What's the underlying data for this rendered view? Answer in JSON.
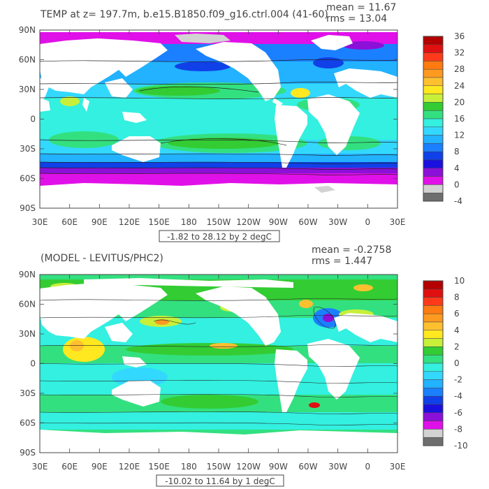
{
  "chart_data": [
    {
      "type": "heatmap",
      "title": "TEMP at z= 197.7m, b.e15.B1850.f09_g16.ctrl.004 (41-60)",
      "stats": {
        "mean": "mean = 11.67",
        "rms": "rms = 13.04"
      },
      "range_note": "-1.82 to 28.12 by 2 degC",
      "xticks": [
        "30E",
        "60E",
        "90E",
        "120E",
        "150E",
        "180",
        "150W",
        "120W",
        "90W",
        "60W",
        "30W",
        "0",
        "30E"
      ],
      "yticks": [
        "90N",
        "60N",
        "30N",
        "0",
        "30S",
        "60S",
        "90S"
      ],
      "colorbar": {
        "labels": [
          "36",
          "32",
          "28",
          "24",
          "20",
          "16",
          "12",
          "8",
          "4",
          "0",
          "-4"
        ],
        "colors": [
          "#b40000",
          "#e01010",
          "#ff3a1a",
          "#ff7a10",
          "#ff9a20",
          "#ffc030",
          "#ffe820",
          "#c8f03a",
          "#33cc33",
          "#33e080",
          "#33f0e0",
          "#33d8ff",
          "#22b2ff",
          "#1a80ff",
          "#1040e8",
          "#1a10e0",
          "#8c10d8",
          "#e010e8",
          "#d2d2d2",
          "#6e6e6e"
        ]
      }
    },
    {
      "type": "heatmap",
      "title": "(MODEL - LEVITUS/PHC2)",
      "stats": {
        "mean": "mean = -0.2758",
        "rms": "rms = 1.447"
      },
      "range_note": "-10.02 to 11.64 by 1 degC",
      "xticks": [
        "30E",
        "60E",
        "90E",
        "120E",
        "150E",
        "180",
        "150W",
        "120W",
        "90W",
        "60W",
        "30W",
        "0",
        "30E"
      ],
      "yticks": [
        "90N",
        "60N",
        "30N",
        "0",
        "30S",
        "60S",
        "90S"
      ],
      "colorbar": {
        "labels": [
          "10",
          "8",
          "6",
          "4",
          "2",
          "0",
          "-2",
          "-4",
          "-6",
          "-8",
          "-10"
        ],
        "colors": [
          "#b40000",
          "#e01010",
          "#ff3a1a",
          "#ff7a10",
          "#ff9a20",
          "#ffc030",
          "#ffe820",
          "#c8f03a",
          "#33cc33",
          "#33e080",
          "#33f0e0",
          "#33d8ff",
          "#22b2ff",
          "#1a80ff",
          "#1040e8",
          "#1a10e0",
          "#8c10d8",
          "#e010e8",
          "#d2d2d2",
          "#6e6e6e"
        ]
      }
    }
  ]
}
